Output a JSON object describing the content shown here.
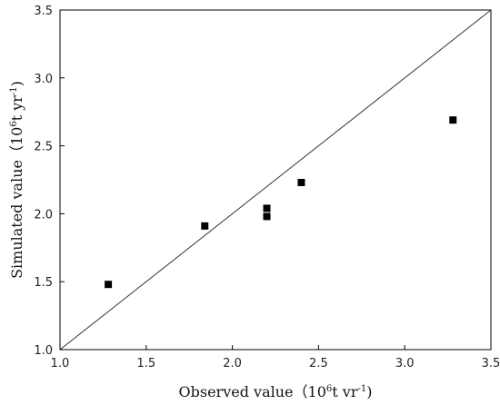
{
  "chart_data": {
    "type": "scatter",
    "title": "",
    "xlabel": {
      "pre": "Observed value（10",
      "sup1": "6",
      "mid": "t vr",
      "sup2": "-1",
      "post": ")"
    },
    "ylabel": {
      "pre": "Simulated value（10",
      "sup1": "6",
      "mid": "t yr",
      "sup2": "-1",
      "post": ")"
    },
    "xlim": [
      1.0,
      3.5
    ],
    "ylim": [
      1.0,
      3.5
    ],
    "xticks": [
      "1.0",
      "1.5",
      "2.0",
      "2.5",
      "3.0",
      "3.5"
    ],
    "yticks": [
      "1.0",
      "1.5",
      "2.0",
      "2.5",
      "3.0",
      "3.5"
    ],
    "grid": false,
    "reference_line": {
      "from": [
        1.0,
        1.0
      ],
      "to": [
        3.5,
        3.5
      ]
    },
    "points": [
      {
        "x": 1.28,
        "y": 1.48
      },
      {
        "x": 1.84,
        "y": 1.91
      },
      {
        "x": 2.2,
        "y": 2.04
      },
      {
        "x": 2.2,
        "y": 1.98
      },
      {
        "x": 2.4,
        "y": 2.23
      },
      {
        "x": 3.28,
        "y": 2.69
      }
    ],
    "marker": "square",
    "marker_color": "#000000",
    "line_color": "#333333"
  }
}
